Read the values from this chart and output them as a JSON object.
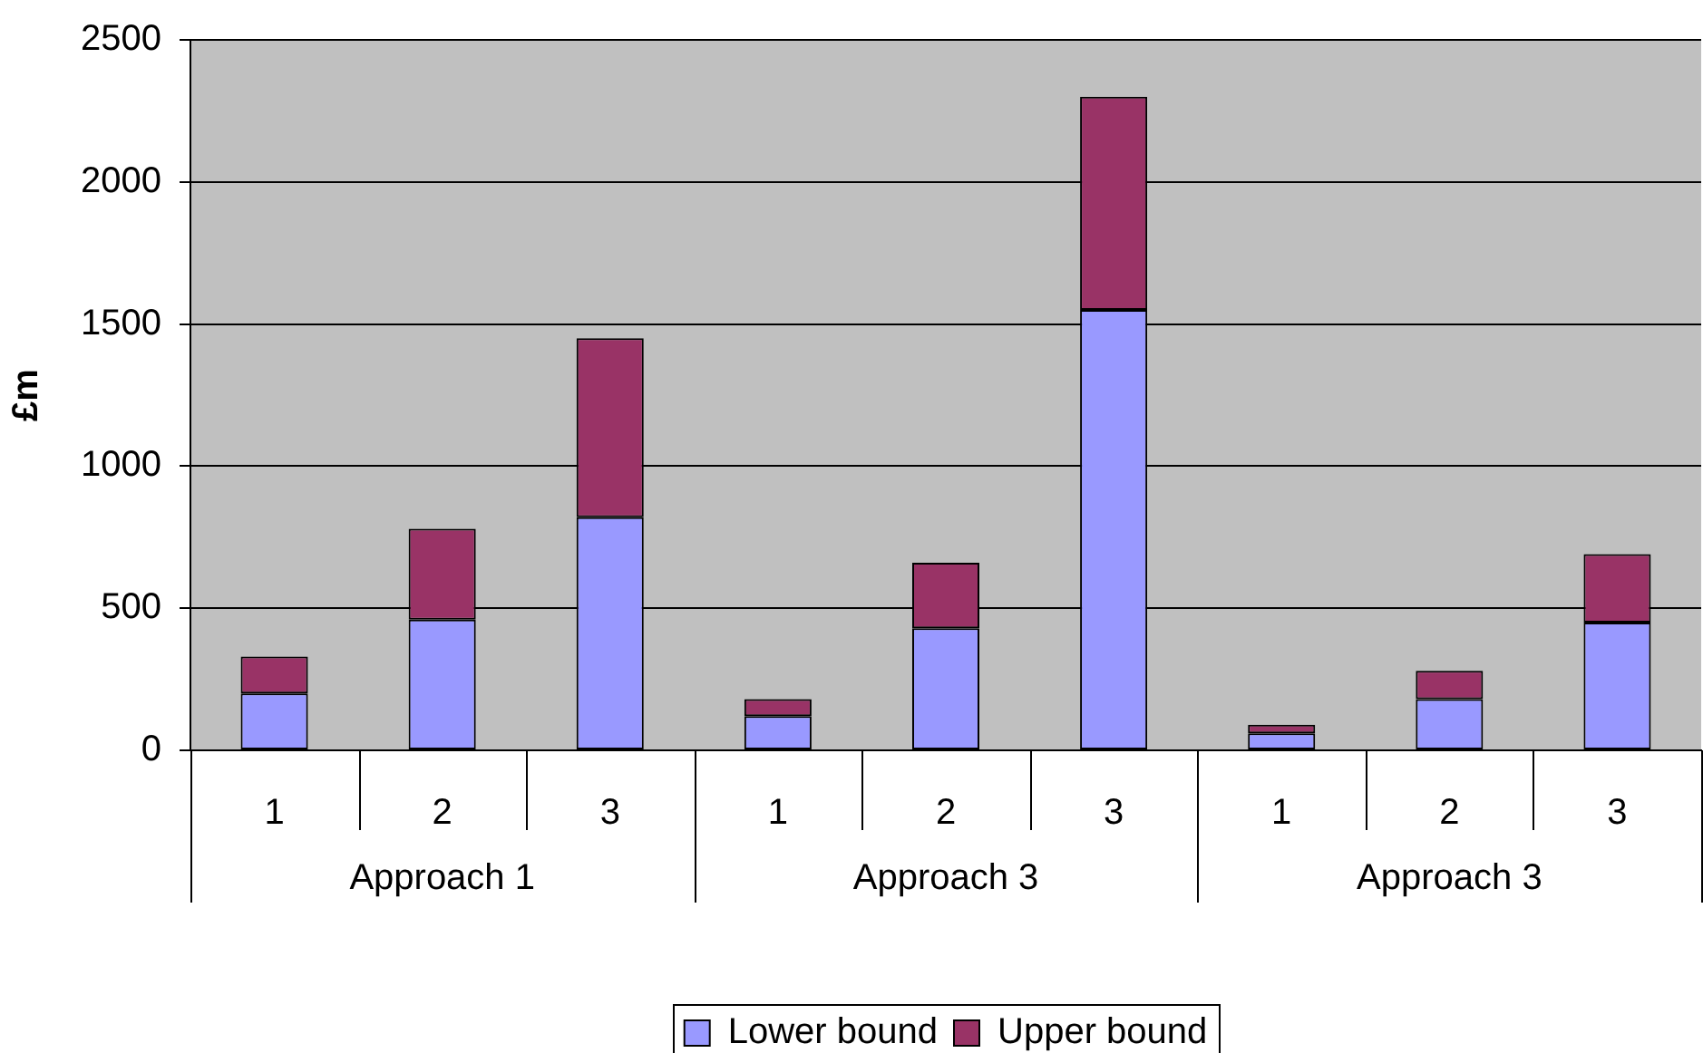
{
  "chart_data": {
    "type": "bar",
    "ylabel": "£m",
    "categories": [
      "1",
      "2",
      "3",
      "1",
      "2",
      "3",
      "1",
      "2",
      "3"
    ],
    "annotations": [
      "Approach 1",
      "Approach 3",
      "Approach 3"
    ],
    "stacked": true,
    "series": [
      {
        "name": "Lower bound",
        "color": "#9999ff",
        "values": [
          200,
          460,
          820,
          120,
          430,
          1550,
          60,
          180,
          450
        ]
      },
      {
        "name": "Upper bound",
        "color": "#993366",
        "values": [
          130,
          320,
          630,
          60,
          230,
          750,
          30,
          100,
          240
        ]
      }
    ],
    "ylim": [
      0,
      2500
    ],
    "yticks": [
      0,
      500,
      1000,
      1500,
      2000,
      2500
    ],
    "grid": "y",
    "legend": "bottom"
  }
}
